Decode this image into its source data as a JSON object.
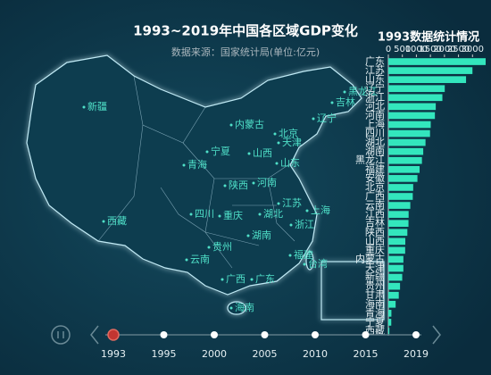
{
  "header": {
    "title": "1993~2019年中国各区域GDP变化",
    "subtitle": "数据来源：国家统计局(单位:亿元)"
  },
  "map": {
    "labels": [
      "新疆",
      "西藏",
      "青海",
      "宁夏",
      "内蒙古",
      "黑龙江",
      "吉林",
      "辽宁",
      "北京",
      "天津",
      "山西",
      "山东",
      "陕西",
      "河南",
      "江苏",
      "上海",
      "四川",
      "重庆",
      "湖北",
      "浙江",
      "湖南",
      "贵州",
      "云南",
      "福建",
      "台湾",
      "广西",
      "广东",
      "海南"
    ]
  },
  "timeline": {
    "labels": [
      "1993",
      "1995",
      "2000",
      "2005",
      "2010",
      "2015",
      "2019"
    ],
    "current": 0
  },
  "chart_data": {
    "type": "bar",
    "orientation": "horizontal",
    "title": "1993数据统计情况",
    "categories": [
      "广东",
      "江苏",
      "山东",
      "辽宁",
      "浙江",
      "河北",
      "河南",
      "上海",
      "四川",
      "湖北",
      "湖南",
      "黑龙江",
      "福建",
      "安徽",
      "北京",
      "广西",
      "云南",
      "江西",
      "吉林",
      "陕西",
      "山西",
      "重庆",
      "内蒙古",
      "天津",
      "新疆",
      "贵州",
      "甘肃",
      "海南",
      "青海",
      "宁夏",
      "西藏"
    ],
    "values": [
      3469,
      2998,
      2770,
      2011,
      1926,
      1690,
      1660,
      1511,
      1486,
      1325,
      1244,
      1198,
      1114,
      1037,
      886,
      871,
      783,
      723,
      718,
      678,
      605,
      600,
      537,
      536,
      495,
      417,
      372,
      260,
      109,
      104,
      37
    ],
    "color": "#33e6bd",
    "xlim": [
      0,
      3500
    ],
    "xticks": [
      0,
      500,
      1000,
      1500,
      2000,
      2500,
      3000
    ]
  }
}
